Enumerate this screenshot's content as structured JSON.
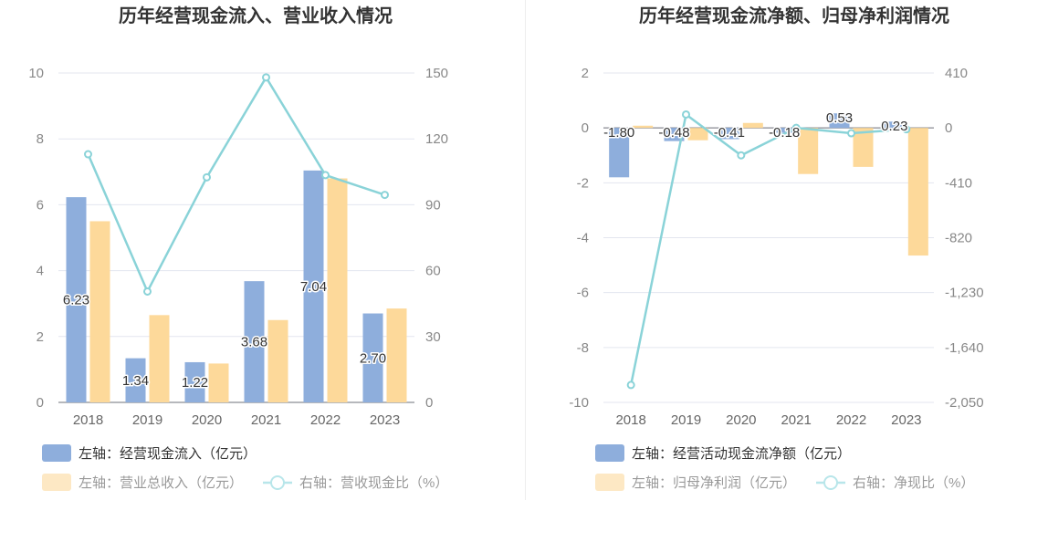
{
  "chart_data": [
    {
      "type": "bar",
      "title": "历年经营现金流入、营业收入情况",
      "categories": [
        "2018",
        "2019",
        "2020",
        "2021",
        "2022",
        "2023"
      ],
      "left_axis": {
        "min": 0,
        "max": 10,
        "ticks": [
          "0",
          "2",
          "4",
          "6",
          "8",
          "10"
        ]
      },
      "right_axis": {
        "min": 0,
        "max": 150,
        "ticks": [
          "0",
          "30",
          "60",
          "90",
          "120",
          "150"
        ]
      },
      "grid": true,
      "legend_position": "bottom-left",
      "series": [
        {
          "name": "左轴：经营现金流入（亿元）",
          "type": "bar",
          "axis": "left",
          "color": "#8eaedc",
          "values": [
            6.23,
            1.34,
            1.22,
            3.68,
            7.04,
            2.7
          ],
          "labels": [
            "6.23",
            "1.34",
            "1.22",
            "3.68",
            "7.04",
            "2.70"
          ]
        },
        {
          "name": "左轴：营业总收入（亿元）",
          "type": "bar",
          "axis": "left",
          "color": "#fdd99a",
          "values": [
            5.5,
            2.65,
            1.18,
            2.5,
            6.8,
            2.85
          ]
        },
        {
          "name": "右轴：营收现金比（%）",
          "type": "line",
          "axis": "right",
          "color": "#8ad3d8",
          "values": [
            113,
            50.5,
            102.5,
            148,
            103.5,
            94.5
          ]
        }
      ]
    },
    {
      "type": "bar",
      "title": "历年经营现金流净额、归母净利润情况",
      "categories": [
        "2018",
        "2019",
        "2020",
        "2021",
        "2022",
        "2023"
      ],
      "left_axis": {
        "min": -10,
        "max": 2,
        "ticks": [
          "-10",
          "-8",
          "-6",
          "-4",
          "-2",
          "0",
          "2"
        ]
      },
      "right_axis": {
        "min": -2050,
        "max": 410,
        "ticks": [
          "-2,050",
          "-1,640",
          "-1,230",
          "-820",
          "-410",
          "0",
          "410"
        ]
      },
      "grid": true,
      "legend_position": "bottom-left",
      "series": [
        {
          "name": "左轴：经营活动现金流净额（亿元）",
          "type": "bar",
          "axis": "left",
          "color": "#8eaedc",
          "values": [
            -1.8,
            -0.48,
            -0.41,
            -0.18,
            0.53,
            0.23
          ],
          "labels": [
            "-1.80",
            "-0.48",
            "-0.41",
            "-0.18",
            "0.53",
            "0.23"
          ]
        },
        {
          "name": "左轴：归母净利润（亿元）",
          "type": "bar",
          "axis": "left",
          "color": "#fdd99a",
          "values": [
            0.08,
            -0.45,
            0.18,
            -1.68,
            -1.42,
            -4.65
          ]
        },
        {
          "name": "右轴：净现比（%）",
          "type": "line",
          "axis": "right",
          "color": "#8ad3d8",
          "values": [
            -1920,
            100,
            -205,
            0,
            -40,
            -10
          ]
        }
      ]
    }
  ]
}
